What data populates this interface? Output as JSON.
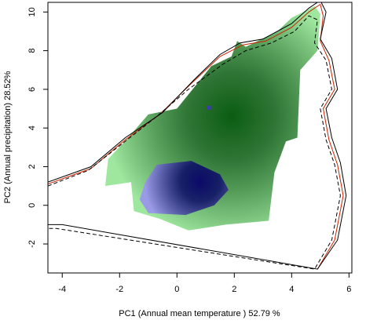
{
  "chart_data": {
    "type": "heatmap",
    "title": "",
    "xlabel": "PC1 (Annual mean temperature ) 52.79 %",
    "ylabel": "PC2 (Annual precipitation) 28.52%",
    "xlim": [
      -4.5,
      6.1
    ],
    "ylim": [
      -3.5,
      10.5
    ],
    "x_ticks": [
      -4,
      -2,
      0,
      2,
      4,
      6
    ],
    "y_ticks": [
      -2,
      0,
      2,
      4,
      6,
      8,
      10
    ],
    "grid": false,
    "legend": "none",
    "colors": {
      "niche_fill": "#9fe79f",
      "niche_core": "#0b5d12",
      "overlap_fill": "#9a9ae6",
      "overlap_core": "#0b0a68",
      "outline_solid": "#000000",
      "outline_dashed": "#000000",
      "outline_red": "#cc2200"
    },
    "series": [
      {
        "role": "green-density",
        "points": [
          [
            -1.7,
            3.5
          ],
          [
            -1.0,
            4.7
          ],
          [
            0.0,
            5.0
          ],
          [
            0.6,
            6.1
          ],
          [
            1.2,
            7.2
          ],
          [
            1.9,
            7.7
          ],
          [
            2.1,
            8.5
          ],
          [
            2.4,
            8.2
          ],
          [
            3.5,
            9.0
          ],
          [
            4.0,
            9.7
          ],
          [
            4.8,
            10.3
          ],
          [
            5.0,
            9.9
          ],
          [
            4.9,
            8.0
          ],
          [
            4.3,
            7.0
          ],
          [
            4.2,
            3.5
          ],
          [
            3.8,
            3.3
          ],
          [
            3.4,
            1.7
          ],
          [
            3.2,
            -0.8
          ],
          [
            1.7,
            -1.0
          ],
          [
            0.4,
            -1.3
          ],
          [
            -0.6,
            -0.7
          ],
          [
            -1.5,
            -0.3
          ],
          [
            -1.6,
            1.2
          ],
          [
            -2.5,
            1.0
          ],
          [
            -2.4,
            2.4
          ]
        ],
        "peak": [
          1.9,
          4.6
        ]
      },
      {
        "role": "blue-density",
        "points": [
          [
            -0.7,
            2.1
          ],
          [
            0.5,
            2.3
          ],
          [
            1.5,
            1.6
          ],
          [
            1.8,
            0.8
          ],
          [
            1.3,
            0.0
          ],
          [
            0.3,
            -0.5
          ],
          [
            -1.0,
            -0.4
          ],
          [
            -1.3,
            0.3
          ],
          [
            -1.1,
            1.2
          ]
        ],
        "peak": [
          0.8,
          1.2
        ]
      },
      {
        "role": "outline-solid",
        "points": [
          [
            -4.5,
            1.2
          ],
          [
            -3.0,
            2.0
          ],
          [
            -1.8,
            3.5
          ],
          [
            -0.5,
            4.8
          ],
          [
            0.6,
            6.5
          ],
          [
            1.5,
            7.8
          ],
          [
            2.2,
            8.4
          ],
          [
            3.0,
            8.6
          ],
          [
            4.0,
            9.4
          ],
          [
            4.6,
            10.2
          ],
          [
            5.0,
            10.6
          ],
          [
            5.2,
            10.0
          ],
          [
            5.0,
            8.6
          ],
          [
            5.4,
            7.6
          ],
          [
            5.6,
            6.0
          ],
          [
            5.2,
            5.0
          ],
          [
            5.4,
            3.5
          ],
          [
            5.7,
            2.2
          ],
          [
            5.9,
            0.5
          ],
          [
            5.6,
            -1.8
          ],
          [
            4.9,
            -3.3
          ],
          [
            -4.0,
            -1.0
          ],
          [
            -4.5,
            -1.0
          ]
        ]
      },
      {
        "role": "outline-dashed",
        "points": [
          [
            -4.5,
            1.0
          ],
          [
            -3.1,
            1.8
          ],
          [
            -1.9,
            3.2
          ],
          [
            -0.7,
            4.6
          ],
          [
            0.4,
            6.0
          ],
          [
            1.6,
            7.3
          ],
          [
            2.4,
            8.0
          ],
          [
            3.3,
            8.4
          ],
          [
            4.1,
            9.0
          ],
          [
            4.6,
            9.8
          ],
          [
            4.9,
            9.6
          ],
          [
            4.8,
            8.4
          ],
          [
            5.2,
            7.5
          ],
          [
            5.4,
            6.0
          ],
          [
            5.0,
            5.0
          ],
          [
            5.2,
            3.4
          ],
          [
            5.5,
            2.1
          ],
          [
            5.7,
            0.5
          ],
          [
            5.4,
            -1.8
          ],
          [
            4.8,
            -3.3
          ],
          [
            -4.2,
            -1.2
          ],
          [
            -4.5,
            -1.2
          ]
        ]
      },
      {
        "role": "outline-red",
        "points": [
          [
            -4.5,
            1.1
          ],
          [
            -3.0,
            1.9
          ],
          [
            -1.8,
            3.4
          ],
          [
            -0.6,
            4.7
          ],
          [
            0.5,
            6.3
          ],
          [
            1.5,
            7.7
          ],
          [
            2.3,
            8.3
          ],
          [
            3.1,
            8.5
          ],
          [
            4.0,
            9.2
          ],
          [
            4.6,
            10.0
          ],
          [
            5.0,
            10.4
          ],
          [
            5.1,
            9.8
          ],
          [
            5.0,
            8.5
          ],
          [
            5.3,
            7.5
          ],
          [
            5.5,
            6.0
          ],
          [
            5.1,
            5.0
          ],
          [
            5.3,
            3.4
          ],
          [
            5.6,
            2.1
          ],
          [
            5.8,
            0.5
          ],
          [
            5.5,
            -1.8
          ],
          [
            4.9,
            -3.3
          ]
        ]
      }
    ]
  }
}
